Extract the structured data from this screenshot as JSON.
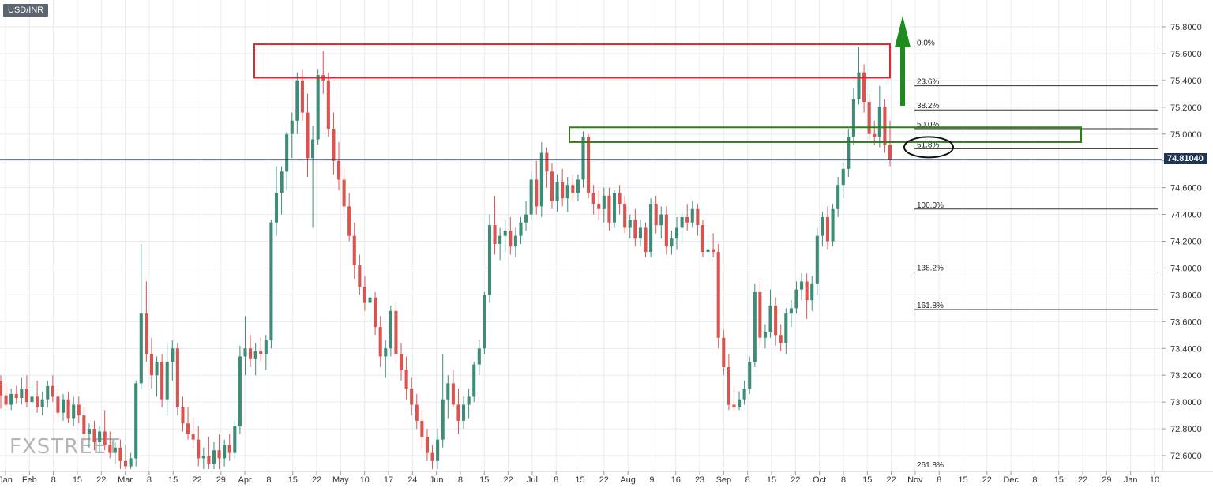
{
  "symbol": "USD/INR",
  "current_price_label": "74.81040",
  "watermark_text": "FXSTREET",
  "colors": {
    "up": "#3d8c78",
    "down": "#d9534f",
    "resistance_box": "#e8242d",
    "support_box": "#2f7d18",
    "arrow": "#1f8a1f",
    "price_line": "#1e3656",
    "grid": "#e6ebf1"
  },
  "chart_data": {
    "type": "candlestick",
    "title": "",
    "xlabel": "",
    "ylabel": "",
    "ylim": [
      72.5,
      75.9
    ],
    "y_ticks": [
      "75.8000",
      "75.6000",
      "75.4000",
      "75.2000",
      "75.0000",
      "74.8000",
      "74.6000",
      "74.4000",
      "74.2000",
      "74.0000",
      "73.8000",
      "73.6000",
      "73.4000",
      "73.2000",
      "73.0000",
      "72.8000",
      "72.6000"
    ],
    "x_tick_labels": [
      "Jan",
      "Feb",
      "8",
      "15",
      "22",
      "Mar",
      "8",
      "15",
      "22",
      "29",
      "Apr",
      "8",
      "15",
      "22",
      "May",
      "10",
      "17",
      "24",
      "Jun",
      "8",
      "15",
      "22",
      "Jul",
      "8",
      "15",
      "22",
      "Aug",
      "9",
      "16",
      "23",
      "Sep",
      "8",
      "15",
      "22",
      "Oct",
      "8",
      "15",
      "22",
      "Nov",
      "8",
      "15",
      "22",
      "Dec",
      "8",
      "15",
      "22",
      "29",
      "Jan",
      "10"
    ],
    "current_price": 74.8104,
    "fibonacci_levels": [
      {
        "label": "0.0%",
        "value": 75.65
      },
      {
        "label": "23.6%",
        "value": 75.36
      },
      {
        "label": "38.2%",
        "value": 75.18
      },
      {
        "label": "50.0%",
        "value": 75.04
      },
      {
        "label": "61.8%",
        "value": 74.89
      },
      {
        "label": "100.0%",
        "value": 74.44
      },
      {
        "label": "138.2%",
        "value": 73.97
      },
      {
        "label": "161.8%",
        "value": 73.69
      },
      {
        "label": "261.8%",
        "value": 72.5
      }
    ],
    "resistance_zone": {
      "low": 75.42,
      "high": 75.67
    },
    "support_zone": {
      "low": 74.94,
      "high": 75.05
    },
    "candles": [
      {
        "o": 73.16,
        "h": 73.2,
        "l": 72.95,
        "c": 73.05
      },
      {
        "o": 73.05,
        "h": 73.14,
        "l": 72.96,
        "c": 72.98
      },
      {
        "o": 72.98,
        "h": 73.1,
        "l": 72.94,
        "c": 73.06
      },
      {
        "o": 73.06,
        "h": 73.12,
        "l": 72.99,
        "c": 73.03
      },
      {
        "o": 73.03,
        "h": 73.18,
        "l": 72.98,
        "c": 73.1
      },
      {
        "o": 73.1,
        "h": 73.2,
        "l": 72.96,
        "c": 73.0
      },
      {
        "o": 73.0,
        "h": 73.12,
        "l": 72.9,
        "c": 73.04
      },
      {
        "o": 73.04,
        "h": 73.16,
        "l": 72.92,
        "c": 72.96
      },
      {
        "o": 72.96,
        "h": 73.08,
        "l": 72.9,
        "c": 73.02
      },
      {
        "o": 73.02,
        "h": 73.16,
        "l": 72.96,
        "c": 73.12
      },
      {
        "o": 73.12,
        "h": 73.2,
        "l": 73.0,
        "c": 73.04
      },
      {
        "o": 73.04,
        "h": 73.1,
        "l": 72.88,
        "c": 72.92
      },
      {
        "o": 72.92,
        "h": 73.06,
        "l": 72.86,
        "c": 73.02
      },
      {
        "o": 73.02,
        "h": 73.08,
        "l": 72.84,
        "c": 72.88
      },
      {
        "o": 72.88,
        "h": 73.04,
        "l": 72.82,
        "c": 72.98
      },
      {
        "o": 72.98,
        "h": 73.04,
        "l": 72.84,
        "c": 72.9
      },
      {
        "o": 72.9,
        "h": 72.96,
        "l": 72.7,
        "c": 72.76
      },
      {
        "o": 72.76,
        "h": 72.84,
        "l": 72.66,
        "c": 72.8
      },
      {
        "o": 72.8,
        "h": 72.86,
        "l": 72.64,
        "c": 72.7
      },
      {
        "o": 72.7,
        "h": 72.82,
        "l": 72.62,
        "c": 72.78
      },
      {
        "o": 72.78,
        "h": 72.94,
        "l": 72.64,
        "c": 72.68
      },
      {
        "o": 72.68,
        "h": 72.78,
        "l": 72.58,
        "c": 72.62
      },
      {
        "o": 72.62,
        "h": 72.7,
        "l": 72.54,
        "c": 72.66
      },
      {
        "o": 72.66,
        "h": 72.72,
        "l": 72.5,
        "c": 72.56
      },
      {
        "o": 72.56,
        "h": 72.68,
        "l": 72.5,
        "c": 72.52
      },
      {
        "o": 72.52,
        "h": 72.62,
        "l": 72.5,
        "c": 72.58
      },
      {
        "o": 72.58,
        "h": 73.16,
        "l": 72.52,
        "c": 73.14
      },
      {
        "o": 73.14,
        "h": 74.18,
        "l": 73.1,
        "c": 73.66
      },
      {
        "o": 73.66,
        "h": 73.9,
        "l": 73.3,
        "c": 73.36
      },
      {
        "o": 73.36,
        "h": 73.48,
        "l": 73.1,
        "c": 73.2
      },
      {
        "o": 73.2,
        "h": 73.34,
        "l": 73.04,
        "c": 73.3
      },
      {
        "o": 73.3,
        "h": 73.36,
        "l": 72.96,
        "c": 73.02
      },
      {
        "o": 73.02,
        "h": 73.44,
        "l": 72.9,
        "c": 73.3
      },
      {
        "o": 73.3,
        "h": 73.46,
        "l": 73.16,
        "c": 73.4
      },
      {
        "o": 73.4,
        "h": 73.44,
        "l": 72.9,
        "c": 72.96
      },
      {
        "o": 72.96,
        "h": 73.04,
        "l": 72.78,
        "c": 72.84
      },
      {
        "o": 72.84,
        "h": 72.96,
        "l": 72.72,
        "c": 72.76
      },
      {
        "o": 72.76,
        "h": 72.88,
        "l": 72.66,
        "c": 72.72
      },
      {
        "o": 72.72,
        "h": 72.82,
        "l": 72.52,
        "c": 72.58
      },
      {
        "o": 72.58,
        "h": 72.66,
        "l": 72.5,
        "c": 72.6
      },
      {
        "o": 72.6,
        "h": 72.74,
        "l": 72.5,
        "c": 72.54
      },
      {
        "o": 72.54,
        "h": 72.7,
        "l": 72.5,
        "c": 72.64
      },
      {
        "o": 72.64,
        "h": 72.76,
        "l": 72.5,
        "c": 72.58
      },
      {
        "o": 72.58,
        "h": 72.72,
        "l": 72.52,
        "c": 72.68
      },
      {
        "o": 72.68,
        "h": 72.76,
        "l": 72.56,
        "c": 72.62
      },
      {
        "o": 72.62,
        "h": 72.86,
        "l": 72.58,
        "c": 72.82
      },
      {
        "o": 72.82,
        "h": 73.42,
        "l": 72.76,
        "c": 73.34
      },
      {
        "o": 73.34,
        "h": 73.64,
        "l": 73.2,
        "c": 73.4
      },
      {
        "o": 73.4,
        "h": 73.5,
        "l": 73.26,
        "c": 73.32
      },
      {
        "o": 73.32,
        "h": 73.44,
        "l": 73.2,
        "c": 73.38
      },
      {
        "o": 73.38,
        "h": 73.48,
        "l": 73.3,
        "c": 73.36
      },
      {
        "o": 73.36,
        "h": 73.5,
        "l": 73.24,
        "c": 73.46
      },
      {
        "o": 73.46,
        "h": 74.36,
        "l": 73.4,
        "c": 74.34
      },
      {
        "o": 74.34,
        "h": 74.76,
        "l": 74.24,
        "c": 74.56
      },
      {
        "o": 74.56,
        "h": 74.76,
        "l": 74.4,
        "c": 74.72
      },
      {
        "o": 74.72,
        "h": 75.02,
        "l": 74.58,
        "c": 75.0
      },
      {
        "o": 75.0,
        "h": 75.16,
        "l": 74.82,
        "c": 75.1
      },
      {
        "o": 75.1,
        "h": 75.46,
        "l": 75.0,
        "c": 75.4
      },
      {
        "o": 75.4,
        "h": 75.48,
        "l": 75.1,
        "c": 75.16
      },
      {
        "o": 75.16,
        "h": 75.3,
        "l": 74.68,
        "c": 74.82
      },
      {
        "o": 74.82,
        "h": 75.06,
        "l": 74.3,
        "c": 74.96
      },
      {
        "o": 74.96,
        "h": 75.48,
        "l": 74.92,
        "c": 75.44
      },
      {
        "o": 75.44,
        "h": 75.62,
        "l": 75.3,
        "c": 75.4
      },
      {
        "o": 75.4,
        "h": 75.46,
        "l": 74.98,
        "c": 75.04
      },
      {
        "o": 75.04,
        "h": 75.16,
        "l": 74.7,
        "c": 74.8
      },
      {
        "o": 74.8,
        "h": 74.94,
        "l": 74.58,
        "c": 74.66
      },
      {
        "o": 74.66,
        "h": 74.74,
        "l": 74.38,
        "c": 74.46
      },
      {
        "o": 74.46,
        "h": 74.56,
        "l": 74.2,
        "c": 74.24
      },
      {
        "o": 74.24,
        "h": 74.34,
        "l": 73.92,
        "c": 74.02
      },
      {
        "o": 74.02,
        "h": 74.1,
        "l": 73.8,
        "c": 73.86
      },
      {
        "o": 73.86,
        "h": 73.94,
        "l": 73.68,
        "c": 73.74
      },
      {
        "o": 73.74,
        "h": 73.84,
        "l": 73.6,
        "c": 73.78
      },
      {
        "o": 73.78,
        "h": 73.82,
        "l": 73.5,
        "c": 73.56
      },
      {
        "o": 73.56,
        "h": 73.64,
        "l": 73.26,
        "c": 73.34
      },
      {
        "o": 73.34,
        "h": 73.46,
        "l": 73.18,
        "c": 73.4
      },
      {
        "o": 73.4,
        "h": 73.72,
        "l": 73.34,
        "c": 73.68
      },
      {
        "o": 73.68,
        "h": 73.74,
        "l": 73.3,
        "c": 73.36
      },
      {
        "o": 73.36,
        "h": 73.44,
        "l": 73.16,
        "c": 73.24
      },
      {
        "o": 73.24,
        "h": 73.34,
        "l": 73.02,
        "c": 73.1
      },
      {
        "o": 73.1,
        "h": 73.18,
        "l": 72.9,
        "c": 72.98
      },
      {
        "o": 72.98,
        "h": 73.06,
        "l": 72.8,
        "c": 72.86
      },
      {
        "o": 72.86,
        "h": 72.94,
        "l": 72.66,
        "c": 72.74
      },
      {
        "o": 72.74,
        "h": 72.8,
        "l": 72.56,
        "c": 72.62
      },
      {
        "o": 72.62,
        "h": 72.68,
        "l": 72.5,
        "c": 72.56
      },
      {
        "o": 72.56,
        "h": 72.8,
        "l": 72.5,
        "c": 72.72
      },
      {
        "o": 72.72,
        "h": 73.36,
        "l": 72.66,
        "c": 73.02
      },
      {
        "o": 73.02,
        "h": 73.2,
        "l": 72.88,
        "c": 73.14
      },
      {
        "o": 73.14,
        "h": 73.24,
        "l": 72.96,
        "c": 72.98
      },
      {
        "o": 72.98,
        "h": 73.1,
        "l": 72.76,
        "c": 72.86
      },
      {
        "o": 72.86,
        "h": 73.04,
        "l": 72.8,
        "c": 72.98
      },
      {
        "o": 72.98,
        "h": 73.1,
        "l": 72.88,
        "c": 73.04
      },
      {
        "o": 73.04,
        "h": 73.3,
        "l": 73.0,
        "c": 73.28
      },
      {
        "o": 73.28,
        "h": 73.46,
        "l": 73.2,
        "c": 73.4
      },
      {
        "o": 73.4,
        "h": 73.82,
        "l": 73.36,
        "c": 73.8
      },
      {
        "o": 73.8,
        "h": 74.4,
        "l": 73.74,
        "c": 74.32
      },
      {
        "o": 74.32,
        "h": 74.54,
        "l": 74.1,
        "c": 74.18
      },
      {
        "o": 74.18,
        "h": 74.3,
        "l": 74.06,
        "c": 74.24
      },
      {
        "o": 74.24,
        "h": 74.36,
        "l": 74.12,
        "c": 74.28
      },
      {
        "o": 74.28,
        "h": 74.38,
        "l": 74.1,
        "c": 74.16
      },
      {
        "o": 74.16,
        "h": 74.3,
        "l": 74.08,
        "c": 74.24
      },
      {
        "o": 74.24,
        "h": 74.38,
        "l": 74.18,
        "c": 74.34
      },
      {
        "o": 74.34,
        "h": 74.5,
        "l": 74.28,
        "c": 74.4
      },
      {
        "o": 74.4,
        "h": 74.72,
        "l": 74.36,
        "c": 74.66
      },
      {
        "o": 74.66,
        "h": 74.8,
        "l": 74.4,
        "c": 74.46
      },
      {
        "o": 74.46,
        "h": 74.94,
        "l": 74.38,
        "c": 74.86
      },
      {
        "o": 74.86,
        "h": 74.9,
        "l": 74.6,
        "c": 74.72
      },
      {
        "o": 74.72,
        "h": 74.78,
        "l": 74.44,
        "c": 74.5
      },
      {
        "o": 74.5,
        "h": 74.7,
        "l": 74.42,
        "c": 74.64
      },
      {
        "o": 74.64,
        "h": 74.74,
        "l": 74.46,
        "c": 74.52
      },
      {
        "o": 74.52,
        "h": 74.68,
        "l": 74.42,
        "c": 74.62
      },
      {
        "o": 74.62,
        "h": 74.7,
        "l": 74.5,
        "c": 74.56
      },
      {
        "o": 74.56,
        "h": 74.7,
        "l": 74.5,
        "c": 74.66
      },
      {
        "o": 74.66,
        "h": 75.02,
        "l": 74.6,
        "c": 74.98
      },
      {
        "o": 74.98,
        "h": 75.0,
        "l": 74.52,
        "c": 74.56
      },
      {
        "o": 74.56,
        "h": 74.62,
        "l": 74.4,
        "c": 74.48
      },
      {
        "o": 74.48,
        "h": 74.58,
        "l": 74.36,
        "c": 74.44
      },
      {
        "o": 74.44,
        "h": 74.6,
        "l": 74.34,
        "c": 74.54
      },
      {
        "o": 74.54,
        "h": 74.6,
        "l": 74.28,
        "c": 74.34
      },
      {
        "o": 74.34,
        "h": 74.58,
        "l": 74.3,
        "c": 74.56
      },
      {
        "o": 74.56,
        "h": 74.62,
        "l": 74.4,
        "c": 74.48
      },
      {
        "o": 74.48,
        "h": 74.54,
        "l": 74.26,
        "c": 74.3
      },
      {
        "o": 74.3,
        "h": 74.4,
        "l": 74.22,
        "c": 74.36
      },
      {
        "o": 74.36,
        "h": 74.44,
        "l": 74.16,
        "c": 74.22
      },
      {
        "o": 74.22,
        "h": 74.36,
        "l": 74.16,
        "c": 74.3
      },
      {
        "o": 74.3,
        "h": 74.34,
        "l": 74.08,
        "c": 74.12
      },
      {
        "o": 74.12,
        "h": 74.52,
        "l": 74.08,
        "c": 74.48
      },
      {
        "o": 74.48,
        "h": 74.54,
        "l": 74.26,
        "c": 74.32
      },
      {
        "o": 74.32,
        "h": 74.46,
        "l": 74.22,
        "c": 74.4
      },
      {
        "o": 74.4,
        "h": 74.46,
        "l": 74.1,
        "c": 74.16
      },
      {
        "o": 74.16,
        "h": 74.28,
        "l": 74.1,
        "c": 74.22
      },
      {
        "o": 74.22,
        "h": 74.38,
        "l": 74.14,
        "c": 74.3
      },
      {
        "o": 74.3,
        "h": 74.42,
        "l": 74.18,
        "c": 74.38
      },
      {
        "o": 74.38,
        "h": 74.48,
        "l": 74.28,
        "c": 74.34
      },
      {
        "o": 74.34,
        "h": 74.5,
        "l": 74.3,
        "c": 74.44
      },
      {
        "o": 74.44,
        "h": 74.48,
        "l": 74.24,
        "c": 74.32
      },
      {
        "o": 74.32,
        "h": 74.36,
        "l": 74.08,
        "c": 74.12
      },
      {
        "o": 74.12,
        "h": 74.22,
        "l": 74.06,
        "c": 74.14
      },
      {
        "o": 74.14,
        "h": 74.26,
        "l": 74.08,
        "c": 74.12
      },
      {
        "o": 74.12,
        "h": 74.18,
        "l": 73.4,
        "c": 73.48
      },
      {
        "o": 73.48,
        "h": 73.54,
        "l": 73.2,
        "c": 73.26
      },
      {
        "o": 73.26,
        "h": 73.36,
        "l": 72.94,
        "c": 72.98
      },
      {
        "o": 72.98,
        "h": 73.12,
        "l": 72.92,
        "c": 72.96
      },
      {
        "o": 72.96,
        "h": 73.08,
        "l": 72.94,
        "c": 73.02
      },
      {
        "o": 73.02,
        "h": 73.16,
        "l": 72.98,
        "c": 73.1
      },
      {
        "o": 73.1,
        "h": 73.34,
        "l": 73.06,
        "c": 73.3
      },
      {
        "o": 73.3,
        "h": 73.88,
        "l": 73.26,
        "c": 73.82
      },
      {
        "o": 73.82,
        "h": 73.9,
        "l": 73.4,
        "c": 73.48
      },
      {
        "o": 73.48,
        "h": 73.58,
        "l": 73.4,
        "c": 73.52
      },
      {
        "o": 73.52,
        "h": 73.84,
        "l": 73.48,
        "c": 73.72
      },
      {
        "o": 73.72,
        "h": 73.78,
        "l": 73.42,
        "c": 73.5
      },
      {
        "o": 73.5,
        "h": 73.58,
        "l": 73.38,
        "c": 73.44
      },
      {
        "o": 73.44,
        "h": 73.7,
        "l": 73.36,
        "c": 73.66
      },
      {
        "o": 73.66,
        "h": 73.76,
        "l": 73.56,
        "c": 73.7
      },
      {
        "o": 73.7,
        "h": 73.9,
        "l": 73.66,
        "c": 73.84
      },
      {
        "o": 73.84,
        "h": 73.96,
        "l": 73.76,
        "c": 73.9
      },
      {
        "o": 73.9,
        "h": 73.96,
        "l": 73.62,
        "c": 73.76
      },
      {
        "o": 73.76,
        "h": 73.94,
        "l": 73.68,
        "c": 73.88
      },
      {
        "o": 73.88,
        "h": 74.3,
        "l": 73.8,
        "c": 74.24
      },
      {
        "o": 74.24,
        "h": 74.42,
        "l": 74.16,
        "c": 74.38
      },
      {
        "o": 74.38,
        "h": 74.46,
        "l": 74.14,
        "c": 74.2
      },
      {
        "o": 74.2,
        "h": 74.48,
        "l": 74.16,
        "c": 74.44
      },
      {
        "o": 74.44,
        "h": 74.68,
        "l": 74.38,
        "c": 74.62
      },
      {
        "o": 74.62,
        "h": 74.78,
        "l": 74.52,
        "c": 74.74
      },
      {
        "o": 74.74,
        "h": 75.04,
        "l": 74.68,
        "c": 74.98
      },
      {
        "o": 74.98,
        "h": 75.34,
        "l": 74.92,
        "c": 75.26
      },
      {
        "o": 75.26,
        "h": 75.65,
        "l": 75.22,
        "c": 75.46
      },
      {
        "o": 75.46,
        "h": 75.52,
        "l": 75.16,
        "c": 75.24
      },
      {
        "o": 75.24,
        "h": 75.3,
        "l": 74.96,
        "c": 75.0
      },
      {
        "o": 75.0,
        "h": 75.1,
        "l": 74.92,
        "c": 74.98
      },
      {
        "o": 74.98,
        "h": 75.36,
        "l": 74.9,
        "c": 75.2
      },
      {
        "o": 75.2,
        "h": 75.26,
        "l": 74.86,
        "c": 74.92
      },
      {
        "o": 74.92,
        "h": 75.1,
        "l": 74.76,
        "c": 74.81
      }
    ]
  }
}
